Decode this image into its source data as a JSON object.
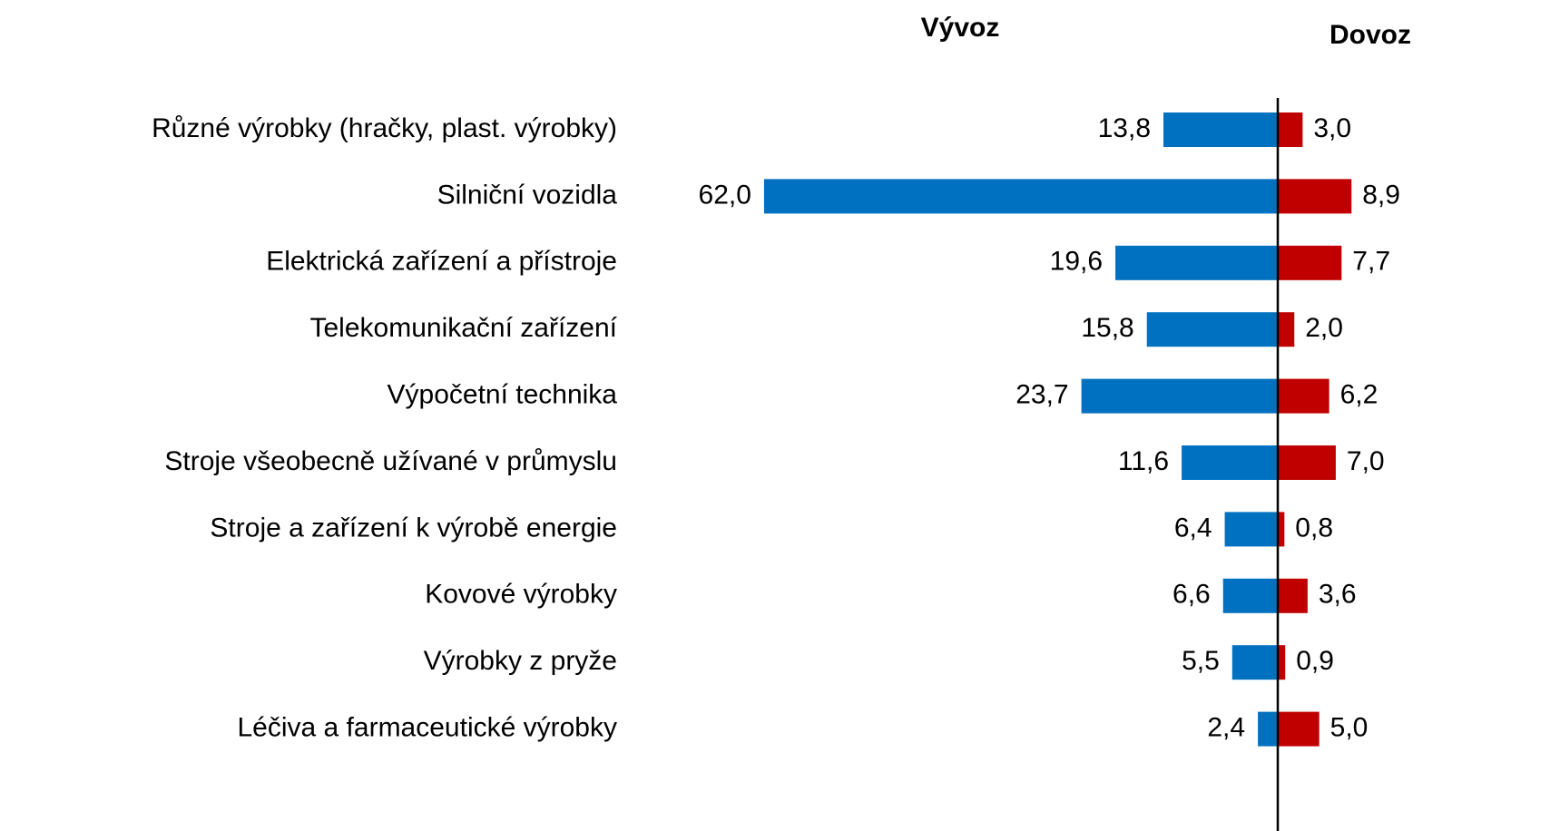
{
  "chart_data": {
    "type": "bar",
    "orientation": "horizontal-diverging",
    "categories": [
      "Různé výrobky (hračky, plast. výrobky)",
      "Silniční vozidla",
      "Elektrická zařízení a přístroje",
      "Telekomunikační zařízení",
      "Výpočetní technika",
      "Stroje všeobecně užívané v průmyslu",
      "Stroje a zařízení k výrobě energie",
      "Kovové výrobky",
      "Výrobky z pryže",
      "Léčiva a farmaceutické výrobky"
    ],
    "series": [
      {
        "name": "Vývoz",
        "color": "#0070c0",
        "direction": "left",
        "values": [
          13.8,
          62.0,
          19.6,
          15.8,
          23.7,
          11.6,
          6.4,
          6.6,
          5.5,
          2.4
        ],
        "value_labels": [
          "13,8",
          "62,0",
          "19,6",
          "15,8",
          "23,7",
          "11,6",
          "6,4",
          "6,6",
          "5,5",
          "2,4"
        ]
      },
      {
        "name": "Dovoz",
        "color": "#c00000",
        "direction": "right",
        "values": [
          3.0,
          8.9,
          7.7,
          2.0,
          6.2,
          7.0,
          0.8,
          3.6,
          0.9,
          5.0
        ],
        "value_labels": [
          "3,0",
          "8,9",
          "7,7",
          "2,0",
          "6,2",
          "7,0",
          "0,8",
          "3,6",
          "0,9",
          "5,0"
        ]
      }
    ]
  }
}
